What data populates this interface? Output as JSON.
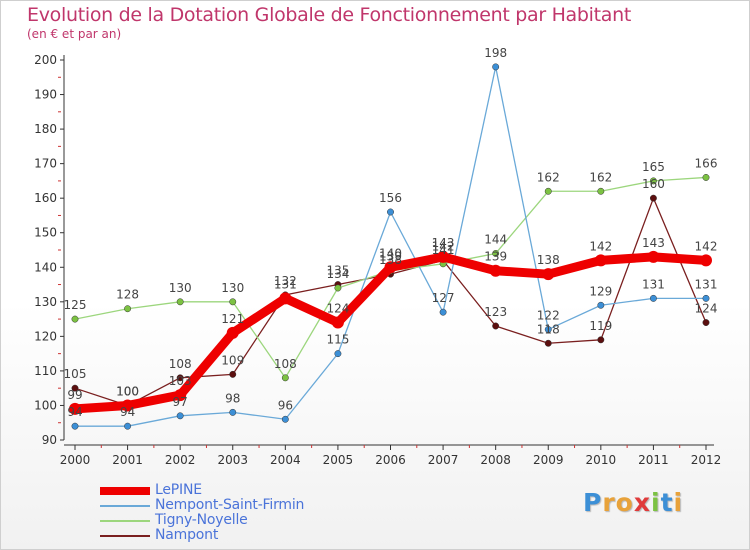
{
  "title": "Evolution de la Dotation Globale de Fonctionnement par Habitant",
  "subtitle": "(en € et par an)",
  "logo": {
    "letters": [
      "P",
      "r",
      "o",
      "x",
      "i",
      "t",
      "i"
    ],
    "colors": [
      "#3c8fd6",
      "#e8a23a",
      "#e8a23a",
      "#e03b3b",
      "#7cc242",
      "#3c8fd6",
      "#e8a23a"
    ]
  },
  "chart_data": {
    "type": "line",
    "title": "Evolution de la Dotation Globale de Fonctionnement par Habitant",
    "subtitle": "(en € et par an)",
    "xlabel": "",
    "ylabel": "",
    "x": [
      "2000",
      "2001",
      "2002",
      "2003",
      "2004",
      "2005",
      "2006",
      "2007",
      "2008",
      "2009",
      "2010",
      "2011",
      "2012"
    ],
    "ylim": [
      90,
      200
    ],
    "yticks": [
      "90",
      "100",
      "110",
      "120",
      "130",
      "140",
      "150",
      "160",
      "170",
      "180",
      "190",
      "200"
    ],
    "grid": false,
    "legend_position": "bottom-left",
    "series": [
      {
        "name": "Nampont",
        "color": "#7a1f1f",
        "marker": "#5c0f0f",
        "values": [
          105,
          100,
          108,
          109,
          132,
          135,
          138,
          142,
          123,
          118,
          119,
          160,
          124
        ]
      },
      {
        "name": "Tigny-Noyelle",
        "color": "#9cd67d",
        "marker": "#7cc242",
        "values": [
          125,
          128,
          130,
          130,
          108,
          134,
          139,
          141,
          144,
          162,
          162,
          165,
          166
        ]
      },
      {
        "name": "Nempont-Saint-Firmin",
        "color": "#6aa9d8",
        "marker": "#3c8fd6",
        "values": [
          94,
          94,
          97,
          98,
          96,
          115,
          156,
          127,
          198,
          122,
          129,
          131,
          131
        ]
      },
      {
        "name": "LePINE",
        "color": "#ee0000",
        "marker": "#ee0000",
        "values": [
          99,
          100,
          103,
          121,
          131,
          124,
          140,
          143,
          139,
          138,
          142,
          143,
          142
        ]
      }
    ],
    "legend": [
      "LePINE",
      "Nempont-Saint-Firmin",
      "Tigny-Noyelle",
      "Nampont"
    ]
  }
}
